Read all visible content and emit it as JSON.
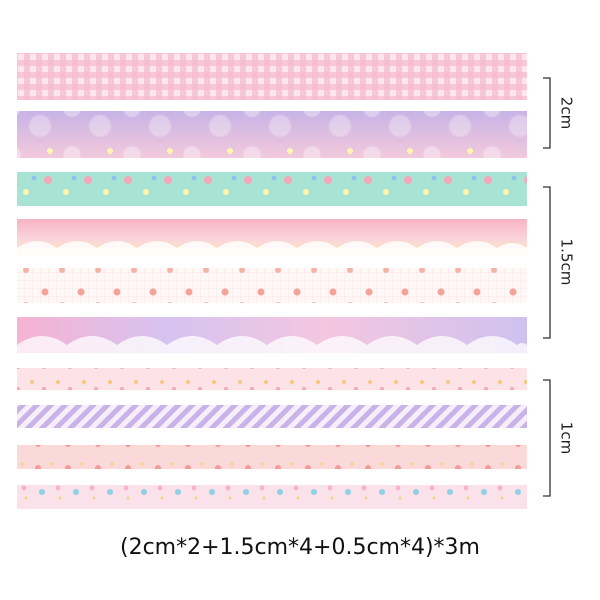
{
  "size_labels": [
    "2cm",
    "1.5cm",
    "1cm"
  ],
  "caption": "(2cm*2+1.5cm*4+0.5cm*4)*3m"
}
